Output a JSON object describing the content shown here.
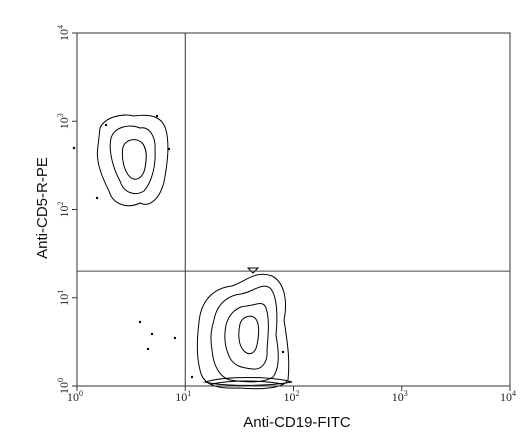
{
  "chart_data": {
    "type": "scatter",
    "subtype": "flow-cytometry-contour",
    "title": "",
    "xlabel": "Anti-CD19-FITC",
    "ylabel": "Anti-CD5-R-PE",
    "xscale": "log",
    "yscale": "log",
    "xlim": [
      1,
      10000
    ],
    "ylim": [
      1,
      10000
    ],
    "x_ticks": [
      {
        "base": "10",
        "exp": "0"
      },
      {
        "base": "10",
        "exp": "1"
      },
      {
        "base": "10",
        "exp": "2"
      },
      {
        "base": "10",
        "exp": "3"
      },
      {
        "base": "10",
        "exp": "4"
      }
    ],
    "y_ticks": [
      {
        "base": "10",
        "exp": "0"
      },
      {
        "base": "10",
        "exp": "1"
      },
      {
        "base": "10",
        "exp": "2"
      },
      {
        "base": "10",
        "exp": "3"
      },
      {
        "base": "10",
        "exp": "4"
      }
    ],
    "quadrant_gates": {
      "x": 10,
      "y": 20
    },
    "populations": [
      {
        "x_range": [
          2,
          7
        ],
        "y_range": [
          100,
          1000
        ]
      },
      {
        "x_range": [
          15,
          80
        ],
        "y_range": [
          1,
          25
        ]
      }
    ],
    "grid": false,
    "legend": "none"
  }
}
